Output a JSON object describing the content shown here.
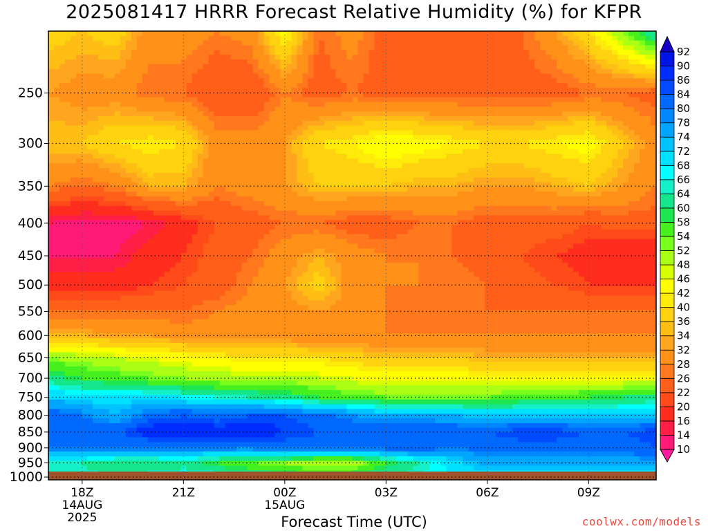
{
  "title": "2025081417 HRRR Forecast Relative Humidity (%) for KFPR",
  "credit": "coolwx.com/models",
  "chart_data": {
    "type": "heatmap",
    "title": "2025081417 HRRR Forecast Relative Humidity (%) for KFPR",
    "xlabel": "Forecast Time (UTC)",
    "ylabel": "",
    "x_hours": [
      17,
      18,
      19,
      20,
      21,
      22,
      23,
      24,
      25,
      26,
      27,
      28,
      29,
      30,
      31,
      32,
      33,
      34,
      35
    ],
    "xlim": [
      17,
      35
    ],
    "xticks": [
      {
        "hour": 18,
        "label": "18Z",
        "date1": "14AUG",
        "date2": "2025"
      },
      {
        "hour": 21,
        "label": "21Z",
        "date1": "",
        "date2": ""
      },
      {
        "hour": 24,
        "label": "00Z",
        "date1": "15AUG",
        "date2": ""
      },
      {
        "hour": 27,
        "label": "03Z",
        "date1": "",
        "date2": ""
      },
      {
        "hour": 30,
        "label": "06Z",
        "date1": "",
        "date2": ""
      },
      {
        "hour": 33,
        "label": "09Z",
        "date1": "",
        "date2": ""
      }
    ],
    "pressure_levels": [
      200,
      250,
      300,
      350,
      400,
      450,
      500,
      550,
      600,
      650,
      700,
      750,
      800,
      850,
      900,
      950,
      1000
    ],
    "yticks": [
      250,
      300,
      350,
      400,
      450,
      500,
      550,
      600,
      650,
      700,
      750,
      800,
      850,
      900,
      950,
      1000
    ],
    "ylim": [
      200,
      1010
    ],
    "y_scale": "log-pressure",
    "ground_level_hpa": 1000,
    "grid": true,
    "colorbar": {
      "levels": [
        10,
        14,
        16,
        20,
        22,
        26,
        28,
        32,
        34,
        36,
        40,
        42,
        46,
        48,
        52,
        54,
        58,
        60,
        64,
        66,
        68,
        72,
        74,
        78,
        80,
        84,
        86,
        90,
        92
      ],
      "colors": [
        "#ff1aa0",
        "#ff1a78",
        "#ff1e46",
        "#ff2d1e",
        "#ff4b19",
        "#ff5f19",
        "#ff781e",
        "#ff9119",
        "#ffa51e",
        "#ffbe14",
        "#ffd20f",
        "#ffeb0a",
        "#ffff00",
        "#d7ff00",
        "#aaff14",
        "#78ff1e",
        "#46f01e",
        "#1ee650",
        "#14e68c",
        "#14f0c8",
        "#00ffff",
        "#00e1ff",
        "#00c3ff",
        "#00a5ff",
        "#0087ff",
        "#0069ff",
        "#004bff",
        "#002dff",
        "#0014e6",
        "#1400c8"
      ]
    },
    "rh_grid": [
      [
        38,
        36,
        38,
        30,
        30,
        28,
        30,
        44,
        26,
        30,
        24,
        22,
        26,
        24,
        26,
        32,
        40,
        52,
        66
      ],
      [
        32,
        30,
        30,
        26,
        26,
        22,
        22,
        28,
        24,
        26,
        24,
        24,
        24,
        24,
        24,
        24,
        26,
        26,
        24
      ],
      [
        36,
        36,
        40,
        42,
        40,
        30,
        30,
        32,
        40,
        42,
        46,
        44,
        42,
        40,
        40,
        42,
        44,
        36,
        30
      ],
      [
        28,
        26,
        28,
        34,
        34,
        28,
        30,
        32,
        36,
        36,
        36,
        34,
        34,
        32,
        32,
        34,
        36,
        32,
        28
      ],
      [
        14,
        12,
        12,
        14,
        18,
        22,
        24,
        26,
        26,
        24,
        24,
        26,
        26,
        24,
        24,
        24,
        22,
        24,
        24
      ],
      [
        14,
        14,
        14,
        18,
        20,
        24,
        26,
        30,
        34,
        30,
        28,
        28,
        26,
        24,
        22,
        20,
        18,
        16,
        16
      ],
      [
        18,
        18,
        18,
        20,
        22,
        24,
        28,
        32,
        38,
        30,
        28,
        28,
        28,
        26,
        24,
        22,
        20,
        20,
        20
      ],
      [
        26,
        26,
        26,
        26,
        26,
        28,
        30,
        30,
        32,
        30,
        28,
        26,
        26,
        26,
        26,
        26,
        26,
        26,
        26
      ],
      [
        34,
        34,
        32,
        32,
        30,
        30,
        30,
        30,
        28,
        28,
        28,
        28,
        28,
        28,
        28,
        28,
        28,
        28,
        28
      ],
      [
        52,
        50,
        48,
        46,
        44,
        42,
        40,
        40,
        40,
        38,
        36,
        36,
        36,
        34,
        34,
        34,
        34,
        34,
        34
      ],
      [
        62,
        58,
        56,
        54,
        52,
        50,
        50,
        50,
        48,
        46,
        44,
        44,
        44,
        44,
        44,
        44,
        44,
        44,
        44
      ],
      [
        72,
        70,
        70,
        70,
        68,
        66,
        64,
        62,
        58,
        56,
        54,
        54,
        54,
        54,
        56,
        56,
        58,
        60,
        62
      ],
      [
        84,
        80,
        74,
        82,
        84,
        82,
        84,
        84,
        82,
        78,
        76,
        76,
        74,
        72,
        72,
        72,
        72,
        72,
        72
      ],
      [
        84,
        84,
        84,
        88,
        90,
        88,
        90,
        86,
        84,
        84,
        84,
        84,
        84,
        84,
        86,
        86,
        84,
        84,
        86
      ],
      [
        80,
        80,
        80,
        80,
        80,
        80,
        80,
        82,
        82,
        82,
        82,
        82,
        80,
        82,
        82,
        82,
        82,
        82,
        84
      ],
      [
        64,
        64,
        60,
        60,
        62,
        58,
        54,
        52,
        48,
        48,
        58,
        64,
        70,
        76,
        76,
        76,
        76,
        76,
        76
      ],
      [
        66,
        66,
        64,
        66,
        68,
        66,
        64,
        62,
        60,
        62,
        64,
        66,
        68,
        70,
        70,
        70,
        70,
        70,
        70
      ]
    ]
  }
}
